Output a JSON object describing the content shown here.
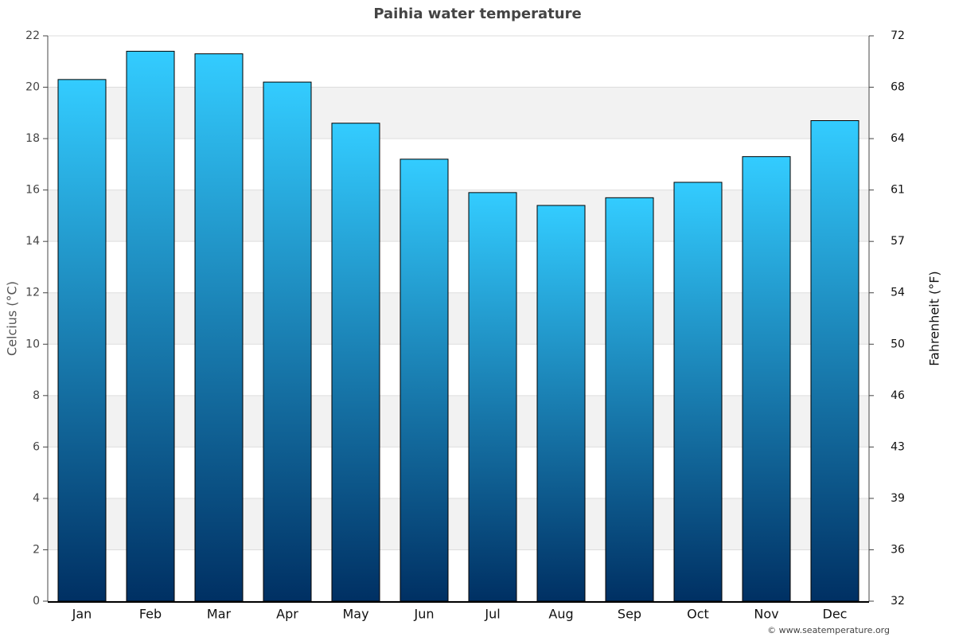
{
  "chart_data": {
    "type": "bar",
    "title": "Paihia water temperature",
    "categories": [
      "Jan",
      "Feb",
      "Mar",
      "Apr",
      "May",
      "Jun",
      "Jul",
      "Aug",
      "Sep",
      "Oct",
      "Nov",
      "Dec"
    ],
    "values": [
      20.3,
      21.4,
      21.3,
      20.2,
      18.6,
      17.2,
      15.9,
      15.4,
      15.7,
      16.3,
      17.3,
      18.7
    ],
    "gradient": [
      "#33ccff",
      "#003063"
    ],
    "ylabel": "Celcius (°C)",
    "y2label": "Fahrenheit (°F)",
    "ylim": [
      0,
      22
    ],
    "yticks": [
      0,
      2,
      4,
      6,
      8,
      10,
      12,
      14,
      16,
      18,
      20,
      22
    ],
    "y2lim": [
      32,
      71.6
    ],
    "y2ticks": [
      32,
      {
        "value": 35.6,
        "label": "36"
      },
      {
        "value": 39.2,
        "label": "39"
      },
      {
        "value": 42.8,
        "label": "43"
      },
      {
        "value": 46.4,
        "label": "46"
      },
      50,
      {
        "value": 53.6,
        "label": "54"
      },
      {
        "value": 57.2,
        "label": "57"
      },
      {
        "value": 60.8,
        "label": "61"
      },
      {
        "value": 64.4,
        "label": "64"
      },
      68,
      {
        "value": 71.6,
        "label": "72"
      }
    ],
    "grid": true,
    "credit": "© www.seatemperature.org"
  }
}
